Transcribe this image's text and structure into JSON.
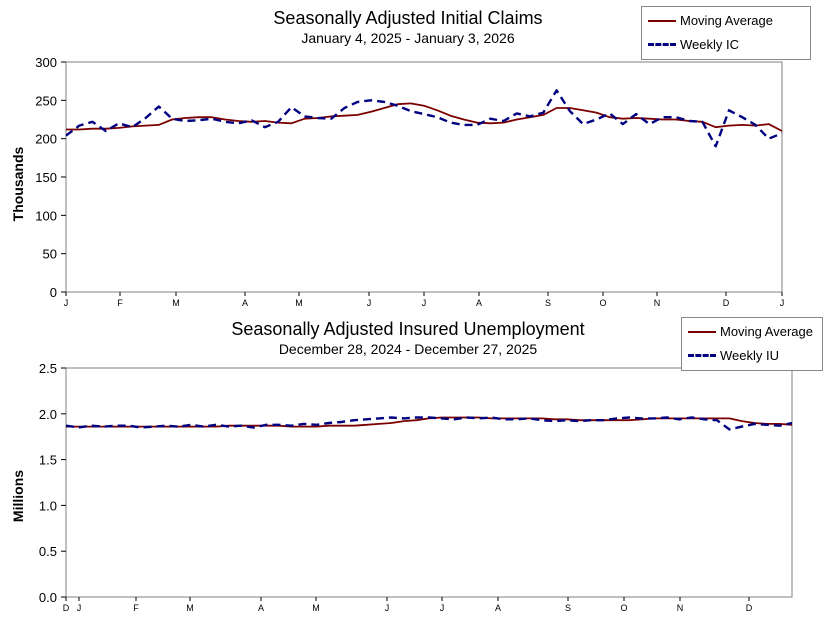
{
  "chart_data": [
    {
      "type": "line",
      "title": "Seasonally Adjusted Initial Claims",
      "subtitle": "January 4, 2025 - January 3, 2026",
      "ylabel": "Thousands",
      "ylim": [
        0,
        300
      ],
      "yticks": [
        "0",
        "50",
        "100",
        "150",
        "200",
        "250",
        "300"
      ],
      "ytick_values": [
        0,
        50,
        100,
        150,
        200,
        250,
        300
      ],
      "xtick_labels": [
        "J",
        "F",
        "M",
        "A",
        "M",
        "J",
        "J",
        "A",
        "S",
        "O",
        "N",
        "D",
        "J"
      ],
      "grid": false,
      "legend_position": "top-right",
      "series": [
        {
          "name": "Moving Average",
          "color": "#7a0000",
          "style": "solid",
          "values": [
            212,
            212,
            213,
            213,
            214,
            216,
            217,
            218,
            225,
            227,
            228,
            228,
            225,
            223,
            222,
            223,
            221,
            220,
            226,
            227,
            229,
            230,
            231,
            235,
            240,
            245,
            246,
            243,
            237,
            230,
            225,
            221,
            220,
            221,
            225,
            228,
            231,
            240,
            240,
            237,
            234,
            228,
            226,
            227,
            226,
            225,
            225,
            223,
            222,
            215,
            217,
            218,
            217,
            219,
            210
          ]
        },
        {
          "name": "Weekly IC",
          "color": "#000080",
          "style": "dashed",
          "values": [
            204,
            217,
            222,
            210,
            220,
            215,
            227,
            242,
            226,
            223,
            224,
            226,
            222,
            220,
            224,
            215,
            222,
            241,
            229,
            227,
            226,
            240,
            248,
            250,
            248,
            243,
            236,
            232,
            228,
            221,
            218,
            218,
            226,
            223,
            233,
            229,
            234,
            263,
            236,
            219,
            225,
            233,
            219,
            232,
            219,
            228,
            228,
            223,
            222,
            190,
            237,
            228,
            218,
            200,
            207
          ]
        }
      ]
    },
    {
      "type": "line",
      "title": "Seasonally Adjusted Insured Unemployment",
      "subtitle": "December 28, 2024 - December 27, 2025",
      "ylabel": "Millions",
      "ylim": [
        0,
        2.5
      ],
      "yticks": [
        "0.0",
        "0.5",
        "1.0",
        "1.5",
        "2.0",
        "2.5"
      ],
      "ytick_values": [
        0,
        0.5,
        1.0,
        1.5,
        2.0,
        2.5
      ],
      "xtick_labels": [
        "D",
        "J",
        "F",
        "M",
        "A",
        "M",
        "J",
        "J",
        "A",
        "S",
        "O",
        "N",
        "D"
      ],
      "grid": false,
      "legend_position": "top-right",
      "series": [
        {
          "name": "Moving Average",
          "color": "#7a0000",
          "style": "solid",
          "values": [
            1.86,
            1.86,
            1.86,
            1.86,
            1.86,
            1.86,
            1.86,
            1.86,
            1.86,
            1.86,
            1.86,
            1.86,
            1.86,
            1.87,
            1.87,
            1.87,
            1.87,
            1.87,
            1.86,
            1.86,
            1.86,
            1.87,
            1.87,
            1.87,
            1.88,
            1.89,
            1.9,
            1.92,
            1.93,
            1.95,
            1.96,
            1.96,
            1.96,
            1.96,
            1.95,
            1.95,
            1.95,
            1.95,
            1.95,
            1.94,
            1.94,
            1.93,
            1.93,
            1.93,
            1.93,
            1.93,
            1.94,
            1.95,
            1.95,
            1.95,
            1.95,
            1.95,
            1.95,
            1.95,
            1.92,
            1.9,
            1.89,
            1.89,
            1.88
          ]
        },
        {
          "name": "Weekly IU",
          "color": "#000080",
          "style": "dashed",
          "values": [
            1.87,
            1.85,
            1.87,
            1.86,
            1.87,
            1.87,
            1.85,
            1.86,
            1.87,
            1.86,
            1.88,
            1.86,
            1.88,
            1.86,
            1.87,
            1.85,
            1.88,
            1.88,
            1.87,
            1.89,
            1.88,
            1.9,
            1.91,
            1.93,
            1.94,
            1.95,
            1.96,
            1.95,
            1.96,
            1.96,
            1.95,
            1.94,
            1.96,
            1.95,
            1.96,
            1.94,
            1.94,
            1.95,
            1.93,
            1.92,
            1.93,
            1.92,
            1.93,
            1.93,
            1.95,
            1.96,
            1.95,
            1.95,
            1.96,
            1.94,
            1.96,
            1.94,
            1.93,
            1.83,
            1.86,
            1.89,
            1.88,
            1.87,
            1.9
          ]
        }
      ]
    }
  ]
}
